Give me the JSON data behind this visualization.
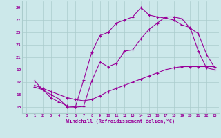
{
  "title": "",
  "xlabel": "Windchill (Refroidissement éolien,°C)",
  "ylabel": "",
  "bg_color": "#cce8ea",
  "line_color": "#990099",
  "grid_color": "#aacccc",
  "xlim": [
    -0.5,
    23.5
  ],
  "ylim": [
    12,
    30
  ],
  "yticks": [
    13,
    15,
    17,
    19,
    21,
    23,
    25,
    27,
    29
  ],
  "xticks": [
    0,
    1,
    2,
    3,
    4,
    5,
    6,
    7,
    8,
    9,
    10,
    11,
    12,
    13,
    14,
    15,
    16,
    17,
    18,
    19,
    20,
    21,
    22,
    23
  ],
  "series1_x": [
    1,
    2,
    3,
    4,
    5,
    6,
    7,
    8,
    9,
    10,
    11,
    12,
    13,
    14,
    15,
    16,
    17,
    18,
    19,
    20,
    21,
    22,
    23
  ],
  "series1_y": [
    16.2,
    15.8,
    15.0,
    14.3,
    13.0,
    13.0,
    13.1,
    17.2,
    20.2,
    19.5,
    20.0,
    22.0,
    22.2,
    24.0,
    25.5,
    26.5,
    27.5,
    27.5,
    27.2,
    25.7,
    24.8,
    21.5,
    19.3
  ],
  "series2_x": [
    1,
    2,
    3,
    4,
    5,
    6,
    7,
    8,
    9,
    10,
    11,
    12,
    13,
    14,
    15,
    16,
    17,
    18,
    19,
    20,
    21,
    22,
    23
  ],
  "series2_y": [
    16.5,
    16.0,
    15.5,
    15.0,
    14.5,
    14.2,
    14.0,
    14.2,
    14.8,
    15.5,
    16.0,
    16.5,
    17.0,
    17.5,
    18.0,
    18.5,
    19.0,
    19.3,
    19.5,
    19.5,
    19.5,
    19.5,
    19.5
  ],
  "series3_x": [
    1,
    3,
    4,
    5,
    6,
    7,
    8,
    9,
    10,
    11,
    12,
    13,
    14,
    15,
    16,
    17,
    18,
    19,
    20,
    21,
    22,
    23
  ],
  "series3_y": [
    17.2,
    14.5,
    13.8,
    13.2,
    13.0,
    17.3,
    21.8,
    24.5,
    25.0,
    26.5,
    27.0,
    27.5,
    29.0,
    27.8,
    27.5,
    27.3,
    27.0,
    26.2,
    25.8,
    22.0,
    19.3,
    19.0
  ]
}
